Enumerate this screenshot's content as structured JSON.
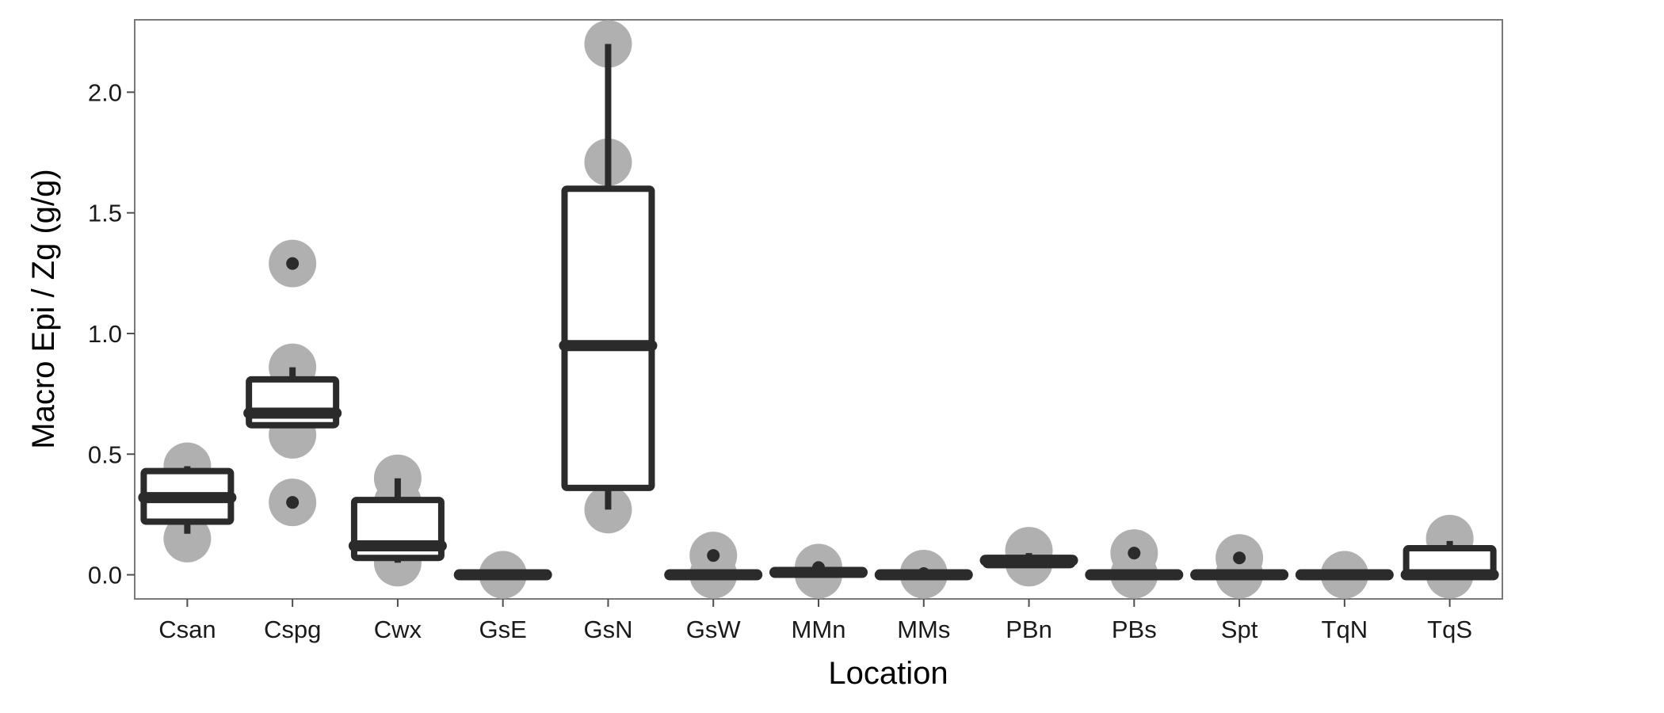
{
  "chart_data": {
    "type": "boxplot",
    "xlabel": "Location",
    "ylabel": "Macro Epi / Zg (g/g)",
    "ylim": [
      -0.1,
      2.3
    ],
    "yticks": [
      0.0,
      0.5,
      1.0,
      1.5,
      2.0
    ],
    "ytick_labels": [
      "0.0",
      "0.5",
      "1.0",
      "1.5",
      "2.0"
    ],
    "categories": [
      "Csan",
      "Cspg",
      "Cwx",
      "GsE",
      "GsN",
      "GsW",
      "MMn",
      "MMs",
      "PBn",
      "PBs",
      "Spt",
      "TqN",
      "TqS"
    ],
    "grid": false,
    "legend": "none",
    "colors": {
      "box": "#2b2b2b",
      "point": "#b0b0b0",
      "outlier": "#2b2b2b",
      "frame": "#7a7a7a"
    },
    "boxes": [
      {
        "category": "Csan",
        "whisker_low": 0.17,
        "q1": 0.22,
        "median": 0.32,
        "q3": 0.43,
        "whisker_high": 0.45,
        "outliers": []
      },
      {
        "category": "Cspg",
        "whisker_low": 0.62,
        "q1": 0.62,
        "median": 0.67,
        "q3": 0.81,
        "whisker_high": 0.86,
        "outliers": [
          1.29,
          0.3
        ]
      },
      {
        "category": "Cwx",
        "whisker_low": 0.05,
        "q1": 0.07,
        "median": 0.12,
        "q3": 0.31,
        "whisker_high": 0.4,
        "outliers": []
      },
      {
        "category": "GsE",
        "whisker_low": 0.0,
        "q1": 0.0,
        "median": 0.0,
        "q3": 0.0,
        "whisker_high": 0.0,
        "outliers": []
      },
      {
        "category": "GsN",
        "whisker_low": 0.27,
        "q1": 0.36,
        "median": 0.95,
        "q3": 1.6,
        "whisker_high": 2.2,
        "outliers": []
      },
      {
        "category": "GsW",
        "whisker_low": 0.0,
        "q1": 0.0,
        "median": 0.0,
        "q3": 0.0,
        "whisker_high": 0.0,
        "outliers": [
          0.08
        ]
      },
      {
        "category": "MMn",
        "whisker_low": 0.0,
        "q1": 0.0,
        "median": 0.01,
        "q3": 0.02,
        "whisker_high": 0.02,
        "outliers": [
          0.03
        ]
      },
      {
        "category": "MMs",
        "whisker_low": 0.0,
        "q1": 0.0,
        "median": 0.0,
        "q3": 0.0,
        "whisker_high": 0.0,
        "outliers": [
          0.005
        ]
      },
      {
        "category": "PBn",
        "whisker_low": 0.04,
        "q1": 0.04,
        "median": 0.06,
        "q3": 0.07,
        "whisker_high": 0.09,
        "outliers": []
      },
      {
        "category": "PBs",
        "whisker_low": 0.0,
        "q1": 0.0,
        "median": 0.0,
        "q3": 0.0,
        "whisker_high": 0.0,
        "outliers": [
          0.09
        ]
      },
      {
        "category": "Spt",
        "whisker_low": 0.0,
        "q1": 0.0,
        "median": 0.0,
        "q3": 0.0,
        "whisker_high": 0.0,
        "outliers": [
          0.07
        ]
      },
      {
        "category": "TqN",
        "whisker_low": 0.0,
        "q1": 0.0,
        "median": 0.0,
        "q3": 0.0,
        "whisker_high": 0.0,
        "outliers": []
      },
      {
        "category": "TqS",
        "whisker_low": 0.0,
        "q1": 0.0,
        "median": 0.0,
        "q3": 0.11,
        "whisker_high": 0.14,
        "outliers": []
      }
    ],
    "points": [
      {
        "category": "Csan",
        "values": [
          0.45,
          0.35,
          0.28,
          0.15
        ]
      },
      {
        "category": "Cspg",
        "values": [
          1.29,
          0.86,
          0.67,
          0.58,
          0.3
        ]
      },
      {
        "category": "Cwx",
        "values": [
          0.4,
          0.3,
          0.16,
          0.05
        ]
      },
      {
        "category": "GsE",
        "values": [
          0.0,
          0.0
        ]
      },
      {
        "category": "GsN",
        "values": [
          2.2,
          1.71,
          1.28,
          0.62,
          0.27
        ]
      },
      {
        "category": "GsW",
        "values": [
          0.08,
          0.0
        ]
      },
      {
        "category": "MMn",
        "values": [
          0.03,
          0.0
        ]
      },
      {
        "category": "MMs",
        "values": [
          0.005,
          0.0
        ]
      },
      {
        "category": "PBn",
        "values": [
          0.1,
          0.05
        ]
      },
      {
        "category": "PBs",
        "values": [
          0.09,
          0.0
        ]
      },
      {
        "category": "Spt",
        "values": [
          0.07,
          0.0
        ]
      },
      {
        "category": "TqN",
        "values": [
          0.0,
          0.0
        ]
      },
      {
        "category": "TqS",
        "values": [
          0.15,
          0.0
        ]
      }
    ]
  }
}
